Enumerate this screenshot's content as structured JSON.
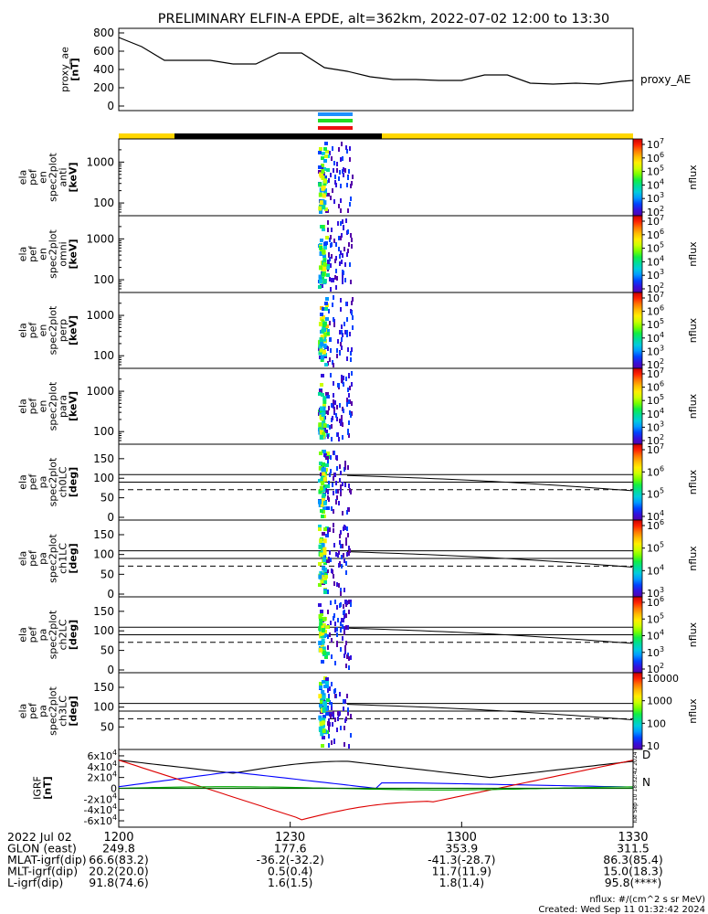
{
  "title": "PRELIMINARY ELFIN-A EPDE, alt=362km, 2022-07-02 12:00 to 13:30",
  "colors": {
    "ae_line": "#000000",
    "bar_yellow": "#ffd700",
    "bar_black": "#000000",
    "bar_blue": "#1e90ff",
    "bar_green": "#22dd22",
    "bar_red": "#ee1111",
    "igrf_black": "#000000",
    "igrf_blue": "#0000ff",
    "igrf_red": "#dd0000",
    "igrf_green": "#00aa00",
    "igrf_darkgreen": "#006400"
  },
  "chart_data": [
    {
      "type": "line",
      "name": "proxy_ae",
      "ylabel_lines": [
        "proxy_ae",
        "[nT]"
      ],
      "legend": "proxy_AE",
      "yticks": [
        "800",
        "600",
        "400",
        "200",
        "0"
      ],
      "ylim": [
        -50,
        850
      ],
      "x_minutes": [
        0,
        4,
        8,
        12,
        16,
        20,
        24,
        28,
        32,
        36,
        40,
        44,
        48,
        52,
        56,
        60,
        64,
        68,
        72,
        76,
        80,
        84,
        88,
        90
      ],
      "values": [
        750,
        650,
        500,
        500,
        500,
        460,
        460,
        580,
        580,
        420,
        380,
        320,
        290,
        290,
        280,
        280,
        340,
        340,
        250,
        240,
        250,
        240,
        270,
        280
      ]
    },
    {
      "type": "heatmap",
      "name": "spec2plot_anti",
      "ylabel_lines": [
        "ela",
        "pef",
        "en",
        "spec2plot",
        "anti",
        "[keV]"
      ],
      "ytick_labels": [
        "1000",
        "100"
      ],
      "yscale": "log",
      "colorbar": {
        "label": "nflux",
        "ticks": [
          "10^7",
          "10^6",
          "10^5",
          "10^4",
          "10^3",
          "10^2"
        ]
      }
    },
    {
      "type": "heatmap",
      "name": "spec2plot_omni",
      "ylabel_lines": [
        "ela",
        "pef",
        "en",
        "spec2plot",
        "omni",
        "[keV]"
      ],
      "ytick_labels": [
        "1000",
        "100"
      ],
      "yscale": "log",
      "colorbar": {
        "label": "nflux",
        "ticks": [
          "10^7",
          "10^6",
          "10^5",
          "10^4",
          "10^3",
          "10^2"
        ]
      }
    },
    {
      "type": "heatmap",
      "name": "spec2plot_perp",
      "ylabel_lines": [
        "ela",
        "pef",
        "en",
        "spec2plot",
        "perp",
        "[keV]"
      ],
      "ytick_labels": [
        "1000",
        "100"
      ],
      "yscale": "log",
      "colorbar": {
        "label": "nflux",
        "ticks": [
          "10^7",
          "10^6",
          "10^5",
          "10^4",
          "10^3",
          "10^2"
        ]
      }
    },
    {
      "type": "heatmap",
      "name": "spec2plot_para",
      "ylabel_lines": [
        "ela",
        "pef",
        "en",
        "spec2plot",
        "para",
        "[keV]"
      ],
      "ytick_labels": [
        "1000",
        "100"
      ],
      "yscale": "log",
      "colorbar": {
        "label": "nflux",
        "ticks": [
          "10^7",
          "10^6",
          "10^5",
          "10^4",
          "10^3",
          "10^2"
        ]
      }
    },
    {
      "type": "heatmap",
      "name": "spec2plot_ch0LC",
      "ylabel_lines": [
        "ela",
        "pef",
        "pa",
        "spec2plot",
        "ch0LC",
        "[deg]"
      ],
      "ytick_labels": [
        "150",
        "100",
        "50",
        "0"
      ],
      "ylim": [
        0,
        180
      ],
      "colorbar": {
        "label": "nflux",
        "ticks": [
          "10^7",
          "10^6",
          "10^5",
          "10^4"
        ]
      }
    },
    {
      "type": "heatmap",
      "name": "spec2plot_ch1LC",
      "ylabel_lines": [
        "ela",
        "pef",
        "pa",
        "spec2plot",
        "ch1LC",
        "[deg]"
      ],
      "ytick_labels": [
        "150",
        "100",
        "50",
        "0"
      ],
      "ylim": [
        0,
        180
      ],
      "colorbar": {
        "label": "nflux",
        "ticks": [
          "10^6",
          "10^5",
          "10^4",
          "10^3"
        ]
      }
    },
    {
      "type": "heatmap",
      "name": "spec2plot_ch2LC",
      "ylabel_lines": [
        "ela",
        "pef",
        "pa",
        "spec2plot",
        "ch2LC",
        "[deg]"
      ],
      "ytick_labels": [
        "150",
        "100",
        "50",
        "0"
      ],
      "ylim": [
        0,
        180
      ],
      "colorbar": {
        "label": "nflux",
        "ticks": [
          "10^6",
          "10^5",
          "10^4",
          "10^3",
          "10^2"
        ]
      }
    },
    {
      "type": "heatmap",
      "name": "spec2plot_ch3LC",
      "ylabel_lines": [
        "ela",
        "pef",
        "pa",
        "spec2plot",
        "ch3LC",
        "[deg]"
      ],
      "ytick_labels": [
        "150",
        "100",
        "50"
      ],
      "ylim": [
        0,
        180
      ],
      "colorbar": {
        "label": "nflux",
        "ticks": [
          "10000",
          "1000",
          "100",
          "10"
        ]
      }
    },
    {
      "type": "line",
      "name": "igrf",
      "ylabel_lines": [
        "IGRF",
        "[nT]"
      ],
      "ytick_labels": [
        "6x10^4",
        "4x10^4",
        "2x10^4",
        "0",
        "-2x10^4",
        "-4x10^4",
        "-6x10^4"
      ],
      "ylim": [
        -65000,
        65000
      ],
      "legend": [
        "D",
        "N"
      ],
      "side_note": "Tue Sep 10 18:32:42 2024"
    }
  ],
  "x_axis": {
    "tick_labels": [
      "1200",
      "1230",
      "1300",
      "1330"
    ],
    "rows": [
      {
        "label": "2022 Jul 02",
        "values": [
          "",
          "",
          "",
          ""
        ]
      },
      {
        "label": "GLON (east)",
        "values": [
          "249.8",
          "177.6",
          "353.9",
          "311.5"
        ]
      },
      {
        "label": "MLAT-igrf(dip)",
        "values": [
          "66.6(83.2)",
          "-36.2(-32.2)",
          "-41.3(-28.7)",
          "86.3(85.4)"
        ]
      },
      {
        "label": "MLT-igrf(dip)",
        "values": [
          "20.2(20.0)",
          "0.5(0.4)",
          "11.7(11.9)",
          "15.0(18.3)"
        ]
      },
      {
        "label": "L-igrf(dip)",
        "values": [
          "91.8(74.6)",
          "1.6(1.5)",
          "1.8(1.4)",
          "95.8(****)"
        ]
      }
    ]
  },
  "footer": {
    "units": "nflux: #/(cm^2 s sr MeV)",
    "created": "Created: Wed Sep 11 01:32:42 2024"
  }
}
